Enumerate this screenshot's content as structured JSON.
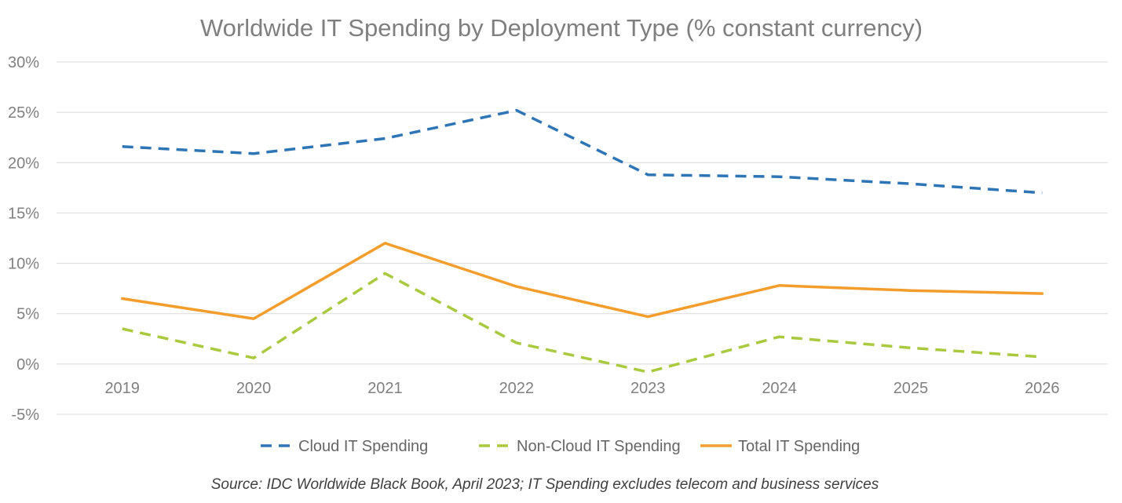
{
  "chart_data": {
    "type": "line",
    "title": "Worldwide IT Spending by Deployment Type (% constant currency)",
    "categories": [
      "2019",
      "2020",
      "2021",
      "2022",
      "2023",
      "2024",
      "2025",
      "2026"
    ],
    "ylim": [
      -5,
      30
    ],
    "yticks": [
      30,
      25,
      20,
      15,
      10,
      5,
      0,
      -5
    ],
    "ytick_labels": [
      "30%",
      "25%",
      "20%",
      "15%",
      "10%",
      "5%",
      "0%",
      "-5%"
    ],
    "grid": true,
    "legend_position": "bottom",
    "series": [
      {
        "name": "Cloud IT Spending",
        "values": [
          21.6,
          20.9,
          22.4,
          25.2,
          18.8,
          18.6,
          17.9,
          17.0
        ],
        "color": "#2e75b6",
        "dash": "dashed"
      },
      {
        "name": "Non-Cloud IT Spending",
        "values": [
          3.5,
          0.6,
          9.0,
          2.1,
          -0.8,
          2.7,
          1.6,
          0.7
        ],
        "color": "#a9c93f",
        "dash": "dashed"
      },
      {
        "name": "Total IT Spending",
        "values": [
          6.5,
          4.5,
          12.0,
          7.7,
          4.7,
          7.8,
          7.3,
          7.0
        ],
        "color": "#f29d2c",
        "dash": "solid"
      }
    ],
    "source": "Source: IDC Worldwide Black Book, April 2023; IT Spending excludes telecom and business services"
  }
}
